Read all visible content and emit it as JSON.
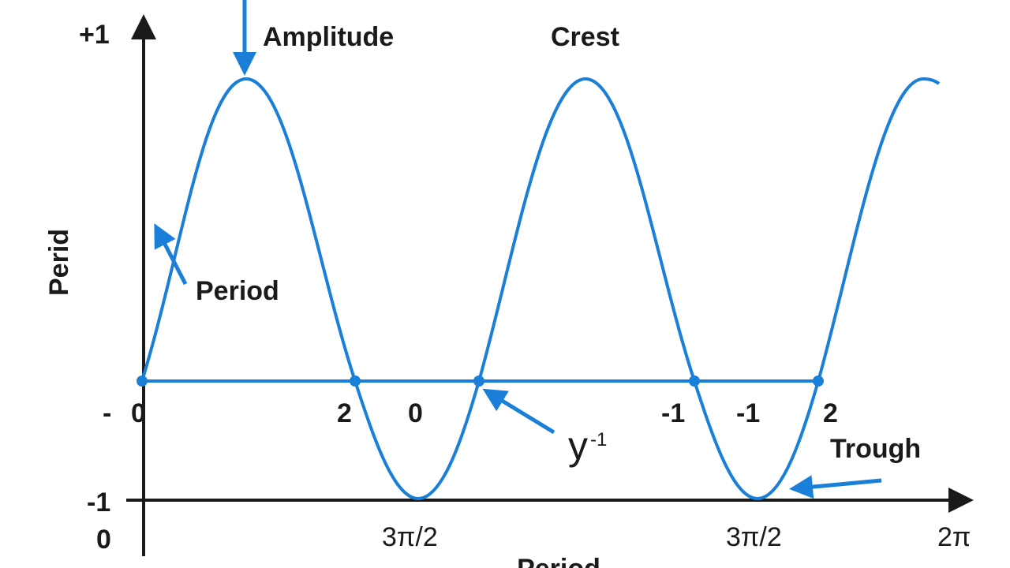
{
  "axis": {
    "y_top": "+1",
    "y_bottom": "-1",
    "origin": "0",
    "y_title": "Perid",
    "x_title": "Period"
  },
  "annotations": {
    "amplitude": "Amplitude",
    "crest": "Crest",
    "period": "Period",
    "trough": "Trough",
    "y_label": "y",
    "y_label_sub": "-1"
  },
  "baseline_labels": [
    "-",
    "0",
    "2",
    "0",
    "-1",
    "-1",
    "2"
  ],
  "x_labels": [
    "3π/2",
    "3π/2",
    "2π"
  ]
}
